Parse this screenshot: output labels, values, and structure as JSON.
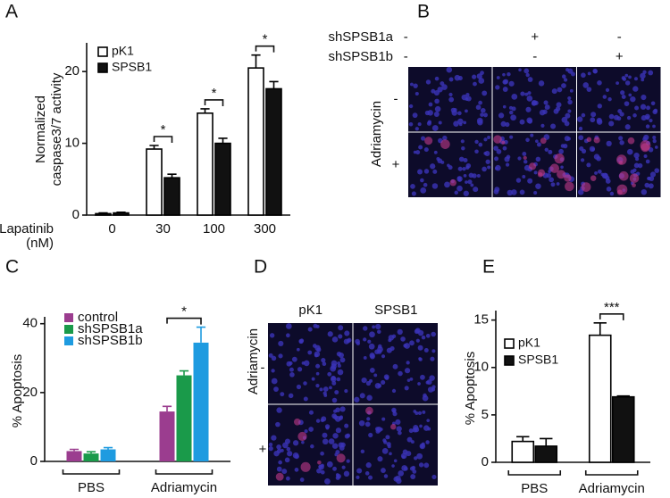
{
  "panel_labels": [
    "A",
    "B",
    "C",
    "D",
    "E"
  ],
  "chart_data": [
    {
      "type": "bar",
      "ylabel": [
        "Normalized",
        "caspase3/7 activity"
      ],
      "xlabel": [
        "Lapatinib",
        "(nM)"
      ],
      "categories": [
        "0",
        "30",
        "100",
        "300"
      ],
      "edgecolor": "#000000",
      "series": [
        {
          "name": "pK1",
          "color": "#ffffff",
          "values": [
            0.2,
            9.2,
            14.2,
            20.5
          ],
          "errors": [
            0.1,
            0.5,
            0.6,
            1.8
          ]
        },
        {
          "name": "SPSB1",
          "color": "#111111",
          "values": [
            0.3,
            5.2,
            10.0,
            17.6
          ],
          "errors": [
            0.1,
            0.5,
            0.7,
            1.0
          ]
        }
      ],
      "annotations": [
        null,
        "*",
        "*",
        "*"
      ],
      "ylim": [
        0,
        24
      ],
      "yticks": [
        0,
        10,
        20
      ]
    },
    {
      "type": "bar",
      "ylabel": [
        "% Apoptosis"
      ],
      "categories": [
        "PBS",
        "Adriamycin"
      ],
      "series": [
        {
          "name": "control",
          "color": "#9b3d8f",
          "values": [
            3.0,
            14.5
          ],
          "errors": [
            0.5,
            1.5
          ]
        },
        {
          "name": "shSPSB1a",
          "color": "#1a9a4a",
          "values": [
            2.3,
            25.0
          ],
          "errors": [
            0.5,
            1.3
          ]
        },
        {
          "name": "shSPSB1b",
          "color": "#1e9be0",
          "values": [
            3.5,
            34.5
          ],
          "errors": [
            0.5,
            4.5
          ]
        }
      ],
      "annotations": [
        null,
        "*"
      ],
      "ylim": [
        0,
        42
      ],
      "yticks": [
        0,
        20,
        40
      ]
    },
    {
      "type": "bar",
      "ylabel": [
        "% Apoptosis"
      ],
      "categories": [
        "PBS",
        "Adriamycin"
      ],
      "edgecolor": "#000000",
      "series": [
        {
          "name": "pK1",
          "color": "#ffffff",
          "values": [
            2.2,
            13.4
          ],
          "errors": [
            0.5,
            1.3
          ]
        },
        {
          "name": "SPSB1",
          "color": "#111111",
          "values": [
            1.7,
            6.9
          ],
          "errors": [
            0.8,
            0.1
          ]
        }
      ],
      "annotations": [
        null,
        "***"
      ],
      "ylim": [
        0,
        16
      ],
      "yticks": [
        0,
        5,
        10,
        15
      ]
    }
  ],
  "image_panels": [
    {
      "column_rows": [
        {
          "name": "shSPSB1a",
          "signs": [
            "-",
            "+",
            "-"
          ]
        },
        {
          "name": "shSPSB1b",
          "signs": [
            "-",
            "-",
            "+"
          ]
        }
      ],
      "row_label": "Adriamycin",
      "row_signs": [
        "-",
        "+"
      ]
    },
    {
      "columns": [
        "pK1",
        "SPSB1"
      ],
      "row_label": "Adriamycin",
      "row_signs": [
        "-",
        "+"
      ]
    }
  ]
}
